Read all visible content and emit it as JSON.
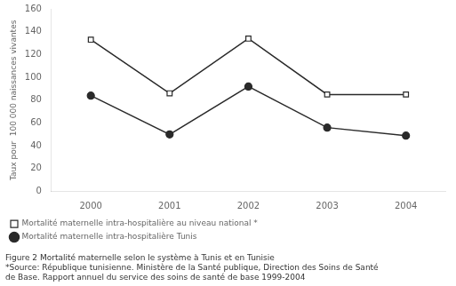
{
  "chart_data": {
    "type": "line",
    "categories": [
      2000,
      2001,
      2002,
      2003,
      2004
    ],
    "series": [
      {
        "name": "Mortalité maternelle intra-hospitalière au niveau national *",
        "color": "#2a2a2a",
        "marker": "open_square",
        "values": [
          133,
          86,
          134,
          85,
          85
        ]
      },
      {
        "name": "Mortalité maternelle intra-hospitalière Tunis",
        "color": "#2a2a2a",
        "marker": "circle",
        "values": [
          84,
          50,
          92,
          56,
          49
        ]
      }
    ],
    "ylabel": "Taux pour  100 000 naissances vivantes",
    "ylim": [
      0,
      160
    ],
    "yticks": [
      0,
      20,
      40,
      60,
      80,
      100,
      120,
      140,
      160
    ],
    "grid": false,
    "legend": "bottom",
    "annotations": [
      "Figure 2 Mortalité maternelle selon le système à Tunis et en Tunisie",
      "*Source: République tunisienne. Ministère de la Santé publique, Direction des Soins de Santé",
      "de Base. Rapport annuel du service des soins de santé de base 1999-2004"
    ]
  }
}
